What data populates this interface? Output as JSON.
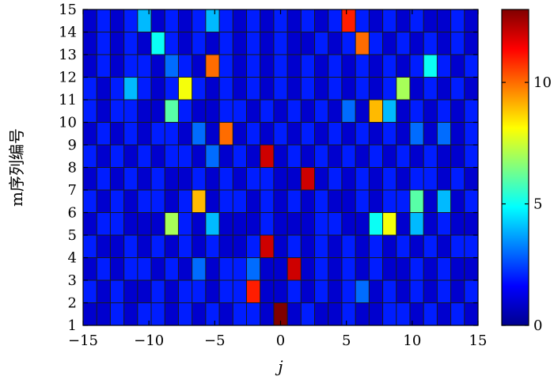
{
  "chart_data": {
    "type": "heatmap",
    "title": "",
    "xlabel": "j",
    "ylabel": "m序列编号",
    "xlim": [
      -15,
      15
    ],
    "ylim": [
      1,
      15
    ],
    "xticks": [
      -15,
      -10,
      -5,
      0,
      5,
      10,
      15
    ],
    "yticks": [
      1,
      2,
      3,
      4,
      5,
      6,
      7,
      8,
      9,
      10,
      11,
      12,
      13,
      14,
      15
    ],
    "x": [
      -14,
      -13,
      -12,
      -11,
      -10,
      -9,
      -8,
      -7,
      -6,
      -5,
      -4,
      -3,
      -2,
      -1,
      0,
      1,
      2,
      3,
      4,
      5,
      6,
      7,
      8,
      9,
      10,
      11,
      12,
      13,
      14
    ],
    "y": [
      1,
      2,
      3,
      4,
      5,
      6,
      7,
      8,
      9,
      10,
      11,
      12,
      13,
      14
    ],
    "colorbar": {
      "range": [
        0,
        13
      ],
      "ticks": [
        0,
        5,
        10
      ],
      "colormap": "jet"
    },
    "values": [
      [
        1,
        1,
        2,
        1,
        2,
        2,
        1,
        2,
        1,
        2,
        1,
        2,
        2,
        1,
        13,
        1,
        2,
        1,
        1,
        2,
        1,
        1,
        2,
        2,
        1,
        2,
        1,
        2,
        1
      ],
      [
        2,
        1,
        2,
        1,
        1,
        2,
        1,
        2,
        2,
        1,
        2,
        2,
        11,
        1,
        1,
        2,
        1,
        2,
        1,
        2,
        3,
        1,
        2,
        1,
        2,
        1,
        2,
        1,
        2
      ],
      [
        1,
        2,
        1,
        2,
        2,
        1,
        2,
        1,
        3,
        1,
        2,
        2,
        3,
        1,
        1,
        12,
        1,
        2,
        1,
        2,
        1,
        2,
        1,
        1,
        2,
        1,
        2,
        1,
        1
      ],
      [
        2,
        1,
        1,
        2,
        1,
        2,
        1,
        2,
        1,
        2,
        1,
        1,
        2,
        12,
        1,
        2,
        1,
        2,
        1,
        2,
        1,
        2,
        1,
        2,
        1,
        2,
        1,
        2,
        2
      ],
      [
        1,
        2,
        2,
        1,
        1,
        1,
        7,
        2,
        1,
        4,
        1,
        1,
        1,
        2,
        1,
        1,
        1,
        2,
        2,
        1,
        1,
        5,
        8,
        1,
        4,
        1,
        2,
        1,
        1
      ],
      [
        2,
        1,
        2,
        1,
        2,
        2,
        1,
        2,
        9,
        1,
        2,
        2,
        1,
        2,
        1,
        2,
        1,
        2,
        1,
        1,
        2,
        1,
        2,
        2,
        6,
        1,
        4,
        1,
        2
      ],
      [
        1,
        2,
        1,
        2,
        1,
        2,
        1,
        1,
        2,
        1,
        2,
        1,
        2,
        2,
        1,
        1,
        12,
        1,
        2,
        1,
        2,
        1,
        2,
        1,
        2,
        2,
        1,
        2,
        1
      ],
      [
        2,
        1,
        2,
        1,
        2,
        1,
        2,
        2,
        1,
        3,
        1,
        2,
        1,
        12,
        1,
        2,
        1,
        2,
        1,
        2,
        1,
        2,
        1,
        2,
        1,
        2,
        1,
        1,
        2
      ],
      [
        1,
        2,
        1,
        2,
        1,
        2,
        2,
        1,
        3,
        1,
        10,
        1,
        2,
        1,
        2,
        1,
        2,
        1,
        2,
        1,
        2,
        1,
        2,
        1,
        3,
        1,
        3,
        1,
        2
      ],
      [
        2,
        1,
        2,
        2,
        1,
        1,
        6,
        2,
        1,
        1,
        2,
        2,
        1,
        2,
        1,
        2,
        1,
        2,
        1,
        3,
        1,
        9,
        4,
        1,
        2,
        1,
        2,
        1,
        2
      ],
      [
        2,
        1,
        2,
        4,
        2,
        1,
        2,
        8,
        2,
        1,
        2,
        1,
        2,
        1,
        2,
        1,
        2,
        1,
        2,
        1,
        2,
        1,
        2,
        7,
        1,
        2,
        1,
        2,
        1
      ],
      [
        1,
        2,
        1,
        2,
        2,
        1,
        3,
        2,
        1,
        10,
        2,
        1,
        2,
        1,
        2,
        1,
        2,
        1,
        2,
        1,
        2,
        1,
        2,
        1,
        2,
        5,
        2,
        1,
        2
      ],
      [
        1,
        2,
        1,
        2,
        1,
        5,
        2,
        1,
        2,
        1,
        2,
        1,
        2,
        1,
        2,
        1,
        1,
        2,
        1,
        2,
        10,
        2,
        1,
        2,
        1,
        2,
        1,
        2,
        1
      ],
      [
        1,
        2,
        1,
        2,
        4,
        1,
        2,
        1,
        2,
        4,
        2,
        1,
        2,
        1,
        2,
        1,
        2,
        1,
        2,
        11,
        2,
        1,
        2,
        1,
        2,
        1,
        1,
        2,
        1
      ]
    ]
  }
}
